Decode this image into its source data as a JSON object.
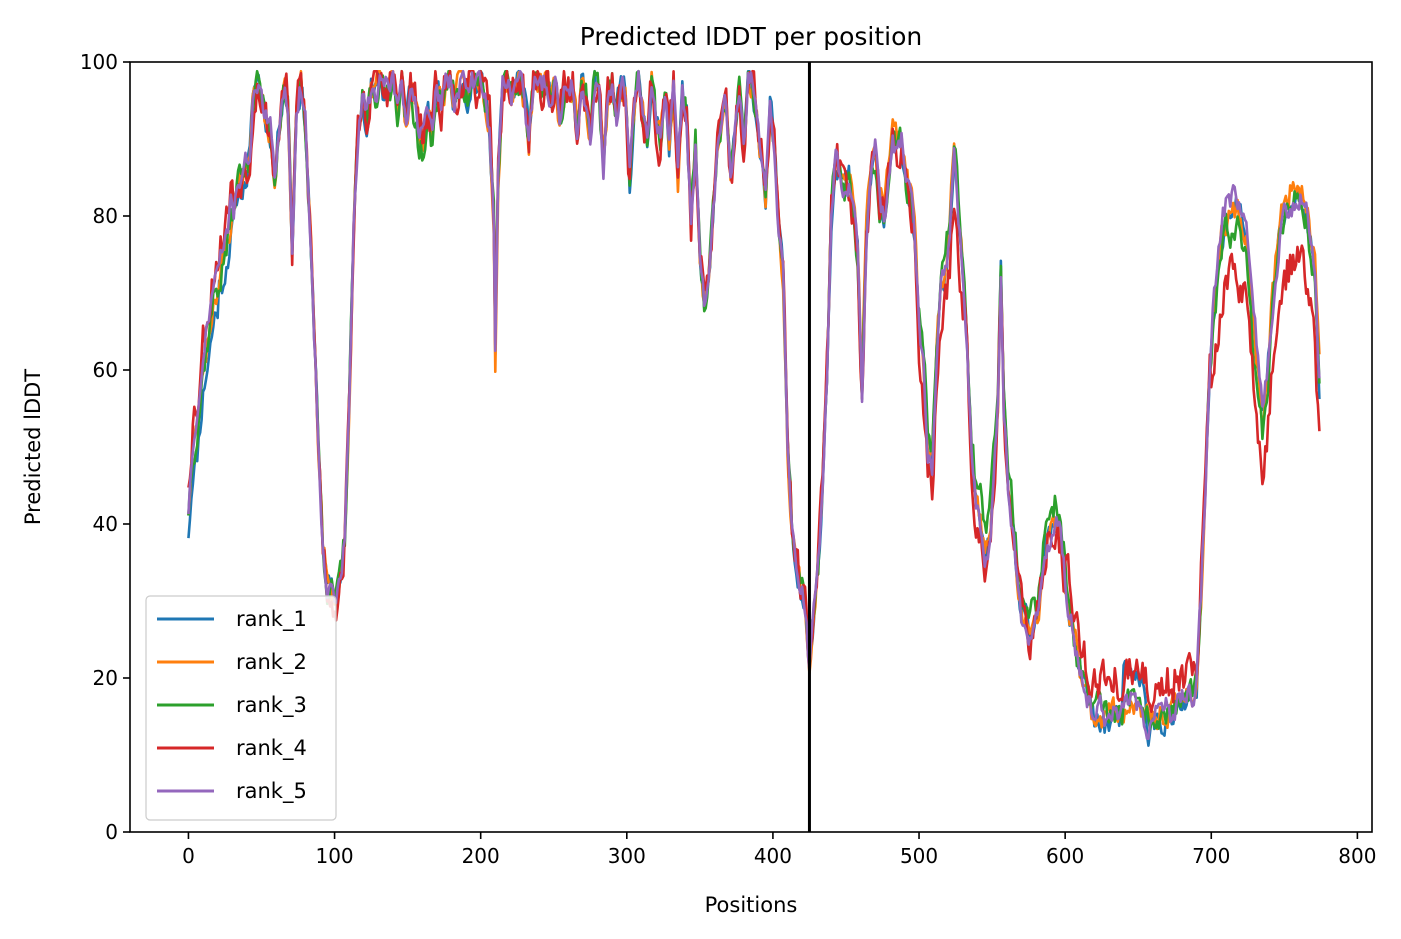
{
  "chart_data": {
    "type": "line",
    "title": "Predicted lDDT per position",
    "xlabel": "Positions",
    "ylabel": "Predicted lDDT",
    "xlim": [
      -40,
      810
    ],
    "ylim": [
      0,
      100
    ],
    "xticks": [
      0,
      100,
      200,
      300,
      400,
      500,
      600,
      700,
      800
    ],
    "yticks": [
      0,
      20,
      40,
      60,
      80,
      100
    ],
    "grid": false,
    "legend_position": "lower-left",
    "vline_x": 425,
    "vline_color": "#000000",
    "base_profile": [
      [
        0,
        42
      ],
      [
        3,
        50
      ],
      [
        6,
        52
      ],
      [
        10,
        60
      ],
      [
        14,
        65
      ],
      [
        18,
        70
      ],
      [
        22,
        72
      ],
      [
        26,
        76
      ],
      [
        30,
        80
      ],
      [
        34,
        85
      ],
      [
        38,
        86
      ],
      [
        42,
        88
      ],
      [
        45,
        97
      ],
      [
        48,
        98
      ],
      [
        52,
        93
      ],
      [
        56,
        91
      ],
      [
        59,
        85
      ],
      [
        62,
        92
      ],
      [
        65,
        97
      ],
      [
        68,
        95
      ],
      [
        71,
        75
      ],
      [
        74,
        94
      ],
      [
        77,
        97
      ],
      [
        80,
        92
      ],
      [
        83,
        80
      ],
      [
        86,
        65
      ],
      [
        89,
        50
      ],
      [
        92,
        38
      ],
      [
        95,
        32
      ],
      [
        98,
        31
      ],
      [
        101,
        30
      ],
      [
        104,
        33
      ],
      [
        107,
        38
      ],
      [
        110,
        55
      ],
      [
        113,
        78
      ],
      [
        116,
        90
      ],
      [
        119,
        95
      ],
      [
        122,
        93
      ],
      [
        125,
        97
      ],
      [
        128,
        96
      ],
      [
        131,
        98
      ],
      [
        134,
        95
      ],
      [
        137,
        97
      ],
      [
        140,
        98
      ],
      [
        143,
        94
      ],
      [
        146,
        98
      ],
      [
        149,
        92
      ],
      [
        152,
        97
      ],
      [
        155,
        95
      ],
      [
        158,
        91
      ],
      [
        161,
        90
      ],
      [
        164,
        93
      ],
      [
        167,
        91
      ],
      [
        170,
        97
      ],
      [
        173,
        95
      ],
      [
        176,
        97
      ],
      [
        179,
        98
      ],
      [
        182,
        95
      ],
      [
        185,
        97
      ],
      [
        188,
        98
      ],
      [
        191,
        95
      ],
      [
        194,
        98
      ],
      [
        197,
        97
      ],
      [
        200,
        98
      ],
      [
        203,
        95
      ],
      [
        206,
        92
      ],
      [
        209,
        80
      ],
      [
        210,
        62
      ],
      [
        212,
        85
      ],
      [
        215,
        97
      ],
      [
        218,
        98
      ],
      [
        221,
        96
      ],
      [
        224,
        97
      ],
      [
        227,
        98
      ],
      [
        230,
        95
      ],
      [
        233,
        90
      ],
      [
        236,
        97
      ],
      [
        239,
        98
      ],
      [
        242,
        96
      ],
      [
        245,
        98
      ],
      [
        248,
        95
      ],
      [
        251,
        97
      ],
      [
        254,
        92
      ],
      [
        257,
        96
      ],
      [
        260,
        96
      ],
      [
        263,
        97
      ],
      [
        266,
        92
      ],
      [
        269,
        97
      ],
      [
        272,
        95
      ],
      [
        275,
        90
      ],
      [
        278,
        98
      ],
      [
        281,
        96
      ],
      [
        284,
        87
      ],
      [
        287,
        95
      ],
      [
        290,
        97
      ],
      [
        293,
        93
      ],
      [
        296,
        97
      ],
      [
        299,
        96
      ],
      [
        302,
        85
      ],
      [
        305,
        93
      ],
      [
        308,
        98
      ],
      [
        311,
        93
      ],
      [
        314,
        90
      ],
      [
        317,
        98
      ],
      [
        320,
        92
      ],
      [
        323,
        90
      ],
      [
        326,
        97
      ],
      [
        329,
        90
      ],
      [
        332,
        97
      ],
      [
        335,
        85
      ],
      [
        338,
        96
      ],
      [
        341,
        93
      ],
      [
        344,
        80
      ],
      [
        347,
        90
      ],
      [
        350,
        75
      ],
      [
        353,
        68
      ],
      [
        356,
        72
      ],
      [
        359,
        80
      ],
      [
        362,
        88
      ],
      [
        365,
        92
      ],
      [
        368,
        95
      ],
      [
        371,
        85
      ],
      [
        374,
        90
      ],
      [
        377,
        96
      ],
      [
        380,
        88
      ],
      [
        383,
        98
      ],
      [
        386,
        97
      ],
      [
        389,
        92
      ],
      [
        392,
        88
      ],
      [
        395,
        82
      ],
      [
        398,
        94
      ],
      [
        401,
        90
      ],
      [
        404,
        78
      ],
      [
        407,
        72
      ],
      [
        410,
        50
      ],
      [
        413,
        40
      ],
      [
        416,
        35
      ],
      [
        419,
        32
      ],
      [
        422,
        30
      ],
      [
        425,
        21
      ],
      [
        428,
        28
      ],
      [
        431,
        35
      ],
      [
        434,
        45
      ],
      [
        437,
        60
      ],
      [
        440,
        80
      ],
      [
        443,
        88
      ],
      [
        446,
        86
      ],
      [
        449,
        84
      ],
      [
        452,
        85
      ],
      [
        455,
        80
      ],
      [
        458,
        75
      ],
      [
        461,
        57
      ],
      [
        464,
        78
      ],
      [
        467,
        85
      ],
      [
        470,
        88
      ],
      [
        473,
        82
      ],
      [
        476,
        79
      ],
      [
        479,
        84
      ],
      [
        482,
        89
      ],
      [
        485,
        88
      ],
      [
        488,
        90
      ],
      [
        491,
        85
      ],
      [
        494,
        82
      ],
      [
        497,
        78
      ],
      [
        500,
        65
      ],
      [
        503,
        60
      ],
      [
        506,
        50
      ],
      [
        509,
        48
      ],
      [
        512,
        62
      ],
      [
        515,
        70
      ],
      [
        518,
        72
      ],
      [
        521,
        78
      ],
      [
        524,
        88
      ],
      [
        527,
        80
      ],
      [
        530,
        72
      ],
      [
        533,
        62
      ],
      [
        536,
        48
      ],
      [
        539,
        42
      ],
      [
        542,
        40
      ],
      [
        545,
        35
      ],
      [
        548,
        38
      ],
      [
        551,
        45
      ],
      [
        554,
        55
      ],
      [
        556,
        72
      ],
      [
        558,
        55
      ],
      [
        561,
        45
      ],
      [
        564,
        40
      ],
      [
        567,
        33
      ],
      [
        570,
        28
      ],
      [
        573,
        27
      ],
      [
        576,
        25
      ],
      [
        579,
        26
      ],
      [
        582,
        28
      ],
      [
        585,
        35
      ],
      [
        588,
        38
      ],
      [
        591,
        39
      ],
      [
        594,
        40
      ],
      [
        597,
        38
      ],
      [
        600,
        32
      ],
      [
        603,
        28
      ],
      [
        606,
        25
      ],
      [
        609,
        22
      ],
      [
        612,
        20
      ],
      [
        615,
        18
      ],
      [
        618,
        16
      ],
      [
        621,
        15
      ],
      [
        624,
        16
      ],
      [
        627,
        15
      ],
      [
        630,
        15
      ],
      [
        633,
        16
      ],
      [
        636,
        15
      ],
      [
        639,
        16
      ],
      [
        642,
        16
      ],
      [
        645,
        17
      ],
      [
        648,
        16
      ],
      [
        651,
        15
      ],
      [
        654,
        15
      ],
      [
        657,
        14
      ],
      [
        660,
        15
      ],
      [
        663,
        15
      ],
      [
        666,
        15
      ],
      [
        669,
        16
      ],
      [
        672,
        15
      ],
      [
        675,
        16
      ],
      [
        678,
        17
      ],
      [
        681,
        17
      ],
      [
        684,
        18
      ],
      [
        687,
        18
      ],
      [
        690,
        19
      ],
      [
        693,
        30
      ],
      [
        696,
        45
      ],
      [
        699,
        60
      ],
      [
        702,
        68
      ],
      [
        705,
        73
      ],
      [
        708,
        78
      ],
      [
        711,
        80
      ],
      [
        714,
        80
      ],
      [
        717,
        81
      ],
      [
        720,
        80
      ],
      [
        723,
        78
      ],
      [
        726,
        74
      ],
      [
        729,
        65
      ],
      [
        732,
        60
      ],
      [
        735,
        54
      ],
      [
        738,
        58
      ],
      [
        741,
        66
      ],
      [
        744,
        72
      ],
      [
        747,
        78
      ],
      [
        750,
        80
      ],
      [
        753,
        81
      ],
      [
        756,
        82
      ],
      [
        759,
        82
      ],
      [
        762,
        82
      ],
      [
        765,
        80
      ],
      [
        768,
        76
      ],
      [
        771,
        72
      ],
      [
        774,
        58
      ]
    ],
    "series": [
      {
        "name": "rank_1",
        "color": "#1f77b4",
        "seed": 11,
        "noise": 1.6,
        "offsets": [
          [
            0,
            20,
            -3
          ],
          [
            22,
            40,
            -2
          ],
          [
            620,
            690,
            -1
          ],
          [
            640,
            655,
            5
          ]
        ]
      },
      {
        "name": "rank_2",
        "color": "#ff7f0e",
        "seed": 23,
        "noise": 1.6,
        "offsets": [
          [
            440,
            540,
            1.5
          ],
          [
            740,
            774,
            2
          ]
        ]
      },
      {
        "name": "rank_3",
        "color": "#2ca02c",
        "seed": 37,
        "noise": 1.8,
        "offsets": [
          [
            500,
            600,
            3
          ],
          [
            150,
            170,
            -2
          ],
          [
            700,
            740,
            -2
          ]
        ]
      },
      {
        "name": "rank_4",
        "color": "#d62728",
        "seed": 53,
        "noise": 2.6,
        "offsets": [
          [
            0,
            30,
            4
          ],
          [
            600,
            695,
            4
          ],
          [
            700,
            774,
            -8
          ],
          [
            500,
            530,
            -4
          ]
        ]
      },
      {
        "name": "rank_5",
        "color": "#9467bd",
        "seed": 71,
        "noise": 1.5,
        "offsets": [
          [
            10,
            30,
            2
          ],
          [
            700,
            740,
            2
          ]
        ]
      }
    ]
  }
}
